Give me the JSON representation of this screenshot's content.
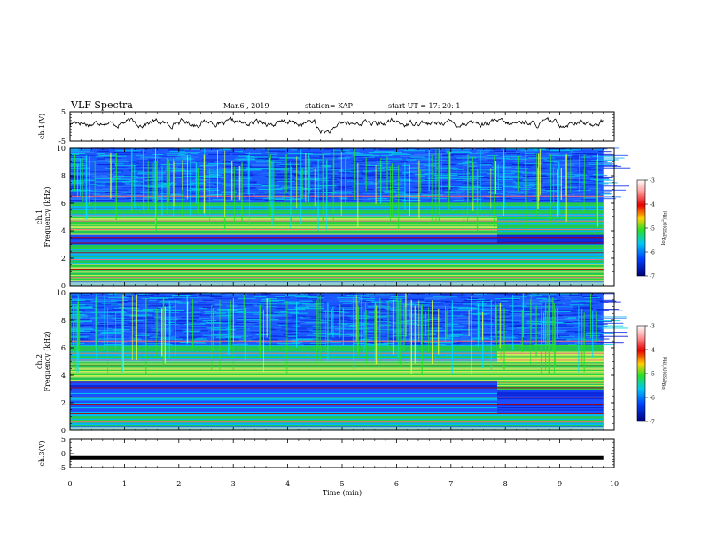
{
  "header": {
    "title": "VLF Spectra",
    "date": "Mar.6 , 2019",
    "station": "station= KAP",
    "start_ut": "start UT = 17: 20: 1"
  },
  "chart_data": [
    {
      "type": "line",
      "panel": "ch1-waveform",
      "ylabel": "ch.1(V)",
      "ylim": [
        -5,
        5
      ],
      "yticks": [
        "5",
        "-5"
      ],
      "xlim": [
        0,
        10
      ],
      "series": [
        {
          "name": "",
          "color": "#000000",
          "description_level": 0
        }
      ]
    },
    {
      "type": "heatmap",
      "panel": "ch1-spectrogram",
      "ylabel": "ch.1\nFrequency (kHz)",
      "ylabel_lines": [
        "ch.1",
        "Frequency (kHz)"
      ],
      "ylim": [
        0,
        10
      ],
      "yticks": [
        "0",
        "2",
        "4",
        "6",
        "8",
        "10"
      ],
      "xlim": [
        0,
        10
      ],
      "data_end_min": 9.8,
      "colorbar": {
        "label": "log(PSD)(V²/Hz)",
        "label_parts": [
          "log",
          "(PSD)(V",
          "2",
          "/Hz)"
        ],
        "range": [
          -7,
          -3
        ],
        "ticks": [
          "-3",
          "-4",
          "-5",
          "-6",
          "-7"
        ]
      }
    },
    {
      "type": "heatmap",
      "panel": "ch2-spectrogram",
      "ylabel": "ch.2\nFrequency (kHz)",
      "ylabel_lines": [
        "ch.2",
        "Frequency (kHz)"
      ],
      "ylim": [
        0,
        10
      ],
      "yticks": [
        "0",
        "2",
        "4",
        "6",
        "8",
        "10"
      ],
      "xlim": [
        0,
        10
      ],
      "data_end_min": 9.8,
      "colorbar": {
        "label": "log(PSD)(V²/Hz)",
        "label_parts": [
          "log",
          "(PSD)(V",
          "2",
          "/Hz)"
        ],
        "range": [
          -7,
          -3
        ],
        "ticks": [
          "-3",
          "-4",
          "-5",
          "-6",
          "-7"
        ]
      }
    },
    {
      "type": "line",
      "panel": "ch3-waveform",
      "ylabel": "ch.3(V)",
      "ylim": [
        -5,
        5
      ],
      "yticks": [
        "5",
        "0",
        "-5"
      ],
      "xlim": [
        0,
        10
      ],
      "xlabel": "Time (min)",
      "xticks": [
        "0",
        "1",
        "2",
        "3",
        "4",
        "5",
        "6",
        "7",
        "8",
        "9",
        "10"
      ],
      "series": [
        {
          "name": "",
          "color": "#000000",
          "constant_value": -1.5,
          "x_end": 9.8
        }
      ]
    }
  ]
}
